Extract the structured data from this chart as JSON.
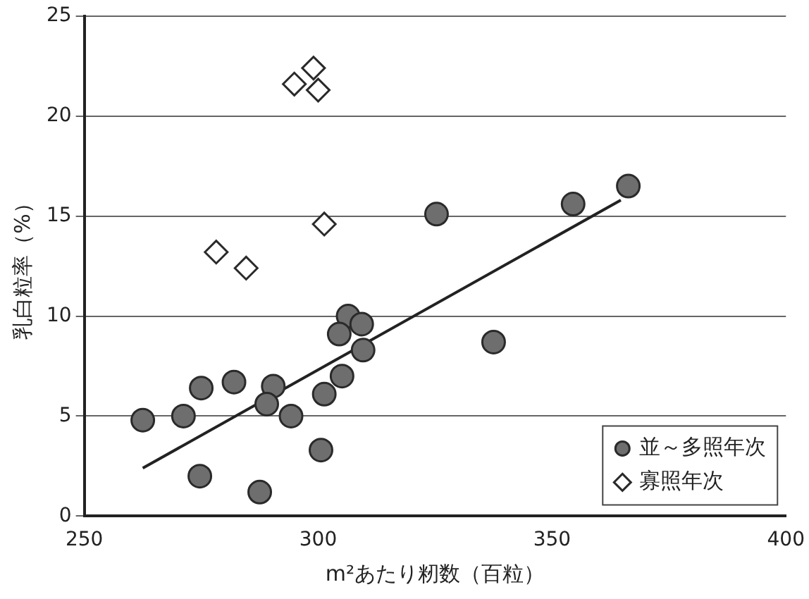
{
  "chart_data": {
    "type": "scatter",
    "xlabel": "m²あたり籾数（百粒）",
    "ylabel": "乳白粒率（%）",
    "xlim": [
      250,
      400
    ],
    "xticks": [
      250,
      300,
      350,
      400
    ],
    "ylim": [
      0,
      25
    ],
    "yticks": [
      0,
      5,
      10,
      15,
      20,
      25
    ],
    "grid": "y",
    "legend": "bottom right",
    "series": [
      {
        "name": "並～多照年次",
        "color": "#6e6e6e",
        "marker": "circle",
        "x": [
          262.5,
          271.2,
          275,
          282,
          274.7,
          287.5,
          290.4,
          289,
          294.2,
          301.3,
          305.1,
          300.6,
          306.4,
          304.5,
          309.3,
          309.6,
          325.3,
          354.5,
          366.3,
          337.5
        ],
        "values": [
          4.8,
          5.0,
          6.4,
          6.7,
          2.0,
          1.2,
          6.5,
          5.6,
          5.0,
          6.1,
          7.0,
          3.3,
          10.0,
          9.1,
          9.6,
          8.3,
          15.1,
          15.6,
          16.5,
          8.7
        ]
      },
      {
        "name": "寡照年次",
        "color": "#ffffff",
        "marker": "diamond",
        "x": [
          299,
          294.9,
          300,
          301.3,
          278.2,
          284.6
        ],
        "values": [
          22.4,
          21.6,
          21.3,
          14.6,
          13.2,
          12.4
        ]
      },
      {
        "type": "line",
        "color": "#222222",
        "marker": "none",
        "line_style": "solid",
        "x": [
          262.5,
          364.7
        ],
        "values": [
          2.4,
          15.8
        ]
      }
    ]
  }
}
